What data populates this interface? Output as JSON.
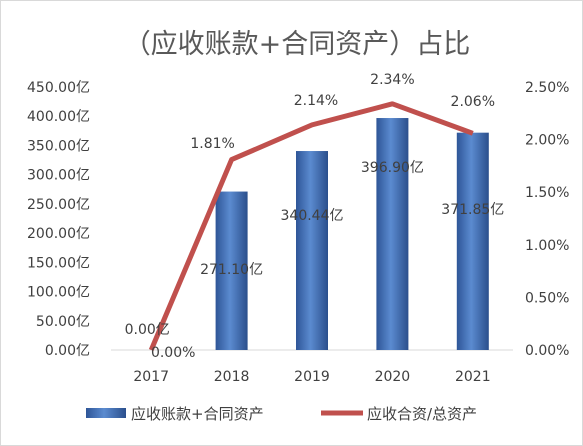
{
  "chart_data": {
    "type": "bar+line",
    "title": "（应收账款+合同资产）占比",
    "categories": [
      "2017",
      "2018",
      "2019",
      "2020",
      "2021"
    ],
    "series": [
      {
        "name": "应收账款+合同资产",
        "type": "bar",
        "axis": "left",
        "unit": "亿",
        "values": [
          0,
          271.1,
          340.44,
          396.9,
          371.85
        ],
        "labels": [
          "0.00亿",
          "271.10亿",
          "340.44亿",
          "396.90亿",
          "371.85亿"
        ],
        "color": "#4a74b8"
      },
      {
        "name": "应收合资/总资产",
        "type": "line",
        "axis": "right",
        "unit": "%",
        "values": [
          0.0,
          1.81,
          2.14,
          2.34,
          2.06
        ],
        "labels": [
          "0.00%",
          "1.81%",
          "2.14%",
          "2.34%",
          "2.06%"
        ],
        "color": "#c0504d"
      }
    ],
    "y_left": {
      "min": 0,
      "max": 450,
      "ticks": [
        "0.00亿",
        "50.00亿",
        "100.00亿",
        "150.00亿",
        "200.00亿",
        "250.00亿",
        "300.00亿",
        "350.00亿",
        "400.00亿",
        "450.00亿"
      ]
    },
    "y_right": {
      "min": 0,
      "max": 2.5,
      "ticks": [
        "0.00%",
        "0.50%",
        "1.00%",
        "1.50%",
        "2.00%",
        "2.50%"
      ]
    },
    "grid": false,
    "legend_position": "bottom"
  }
}
